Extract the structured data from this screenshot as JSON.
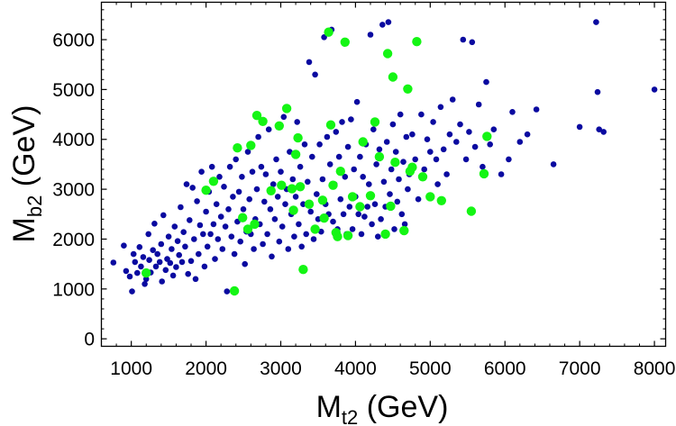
{
  "chart_data": {
    "type": "scatter",
    "title": "",
    "xlabel": {
      "base": "M",
      "sub": "t2",
      "unit": " (GeV)"
    },
    "ylabel": {
      "base": "M",
      "sub": "b2",
      "unit": " (GeV)"
    },
    "xlim": [
      600,
      8150
    ],
    "ylim": [
      -150,
      6750
    ],
    "xticks": [
      1000,
      2000,
      3000,
      4000,
      5000,
      6000,
      7000,
      8000
    ],
    "yticks": [
      0,
      1000,
      2000,
      3000,
      4000,
      5000,
      6000
    ],
    "xtick_labels": [
      "1000",
      "2000",
      "3000",
      "4000",
      "5000",
      "6000",
      "7000",
      "8000"
    ],
    "ytick_labels": [
      "0",
      "1000",
      "2000",
      "3000",
      "4000",
      "5000",
      "6000"
    ],
    "grid": false,
    "colors": {
      "series_blue": "#0a0aa0",
      "series_green": "#14f514",
      "frame": "#000000"
    },
    "series": [
      {
        "name": "blue",
        "color": "#0a0aa0",
        "radius": 3.3,
        "points": [
          [
            760,
            1530
          ],
          [
            900,
            1870
          ],
          [
            930,
            1360
          ],
          [
            980,
            1250
          ],
          [
            1010,
            950
          ],
          [
            1030,
            1700
          ],
          [
            1050,
            1540
          ],
          [
            1080,
            1320
          ],
          [
            1110,
            1840
          ],
          [
            1130,
            1450
          ],
          [
            1160,
            1640
          ],
          [
            1180,
            1100
          ],
          [
            1200,
            1200
          ],
          [
            1230,
            2100
          ],
          [
            1240,
            1580
          ],
          [
            1260,
            1330
          ],
          [
            1290,
            1780
          ],
          [
            1310,
            2310
          ],
          [
            1330,
            1450
          ],
          [
            1350,
            1700
          ],
          [
            1380,
            1540
          ],
          [
            1400,
            1900
          ],
          [
            1410,
            1150
          ],
          [
            1430,
            2480
          ],
          [
            1460,
            1380
          ],
          [
            1480,
            1600
          ],
          [
            1500,
            2050
          ],
          [
            1520,
            1520
          ],
          [
            1540,
            1800
          ],
          [
            1560,
            1270
          ],
          [
            1580,
            2250
          ],
          [
            1600,
            1440
          ],
          [
            1620,
            1960
          ],
          [
            1640,
            1680
          ],
          [
            1660,
            2640
          ],
          [
            1680,
            1540
          ],
          [
            1700,
            2140
          ],
          [
            1720,
            1850
          ],
          [
            1740,
            3100
          ],
          [
            1760,
            1300
          ],
          [
            1780,
            2380
          ],
          [
            1800,
            1560
          ],
          [
            1820,
            3030
          ],
          [
            1840,
            2000
          ],
          [
            1860,
            1200
          ],
          [
            1880,
            2760
          ],
          [
            1900,
            1700
          ],
          [
            1920,
            2280
          ],
          [
            1940,
            3350
          ],
          [
            1960,
            2100
          ],
          [
            1980,
            1450
          ],
          [
            2000,
            2550
          ],
          [
            2020,
            1850
          ],
          [
            2040,
            2950
          ],
          [
            2060,
            2100
          ],
          [
            2080,
            3450
          ],
          [
            2100,
            2300
          ],
          [
            2120,
            1600
          ],
          [
            2140,
            2700
          ],
          [
            2160,
            2000
          ],
          [
            2180,
            3250
          ],
          [
            2200,
            2450
          ],
          [
            2220,
            1800
          ],
          [
            2240,
            3050
          ],
          [
            2260,
            2250
          ],
          [
            2280,
            950
          ],
          [
            2300,
            2600
          ],
          [
            2320,
            3450
          ],
          [
            2340,
            2050
          ],
          [
            2360,
            2850
          ],
          [
            2380,
            1700
          ],
          [
            2400,
            3600
          ],
          [
            2420,
            2350
          ],
          [
            2440,
            2950
          ],
          [
            2460,
            1950
          ],
          [
            2480,
            3250
          ],
          [
            2500,
            2600
          ],
          [
            2520,
            1500
          ],
          [
            2540,
            2150
          ],
          [
            2560,
            3750
          ],
          [
            2580,
            2800
          ],
          [
            2600,
            2100
          ],
          [
            2620,
            3350
          ],
          [
            2640,
            1800
          ],
          [
            2660,
            2400
          ],
          [
            2680,
            3000
          ],
          [
            2700,
            4050
          ],
          [
            2720,
            2300
          ],
          [
            2740,
            3450
          ],
          [
            2760,
            1900
          ],
          [
            2780,
            2750
          ],
          [
            2800,
            3300
          ],
          [
            2820,
            2100
          ],
          [
            2840,
            4200
          ],
          [
            2860,
            2600
          ],
          [
            2880,
            1650
          ],
          [
            2900,
            3100
          ],
          [
            2920,
            2400
          ],
          [
            2940,
            3600
          ],
          [
            2960,
            2850
          ],
          [
            2980,
            1950
          ],
          [
            3000,
            3350
          ],
          [
            3020,
            2250
          ],
          [
            3040,
            4450
          ],
          [
            3060,
            2700
          ],
          [
            3080,
            3000
          ],
          [
            3100,
            1800
          ],
          [
            3120,
            3750
          ],
          [
            3140,
            2500
          ],
          [
            3160,
            3200
          ],
          [
            3180,
            2050
          ],
          [
            3200,
            2850
          ],
          [
            3220,
            4350
          ],
          [
            3240,
            2300
          ],
          [
            3260,
            3450
          ],
          [
            3280,
            1850
          ],
          [
            3300,
            2700
          ],
          [
            3320,
            3900
          ],
          [
            3340,
            2100
          ],
          [
            3360,
            3150
          ],
          [
            3380,
            5550
          ],
          [
            3400,
            2550
          ],
          [
            3420,
            3650
          ],
          [
            3440,
            2000
          ],
          [
            3460,
            5300
          ],
          [
            3480,
            2900
          ],
          [
            3500,
            2400
          ],
          [
            3520,
            3900
          ],
          [
            3540,
            2150
          ],
          [
            3560,
            3200
          ],
          [
            3580,
            6050
          ],
          [
            3600,
            2700
          ],
          [
            3620,
            4050
          ],
          [
            3640,
            2500
          ],
          [
            3660,
            3500
          ],
          [
            3680,
            6200
          ],
          [
            3700,
            2350
          ],
          [
            3720,
            3100
          ],
          [
            3740,
            4150
          ],
          [
            3760,
            2200
          ],
          [
            3780,
            3650
          ],
          [
            3800,
            2800
          ],
          [
            3820,
            4350
          ],
          [
            3840,
            2500
          ],
          [
            3860,
            3250
          ],
          [
            3880,
            2100
          ],
          [
            3900,
            3850
          ],
          [
            3920,
            2650
          ],
          [
            3940,
            4400
          ],
          [
            3960,
            2200
          ],
          [
            3980,
            3400
          ],
          [
            4000,
            2850
          ],
          [
            4020,
            4750
          ],
          [
            4040,
            2500
          ],
          [
            4060,
            3650
          ],
          [
            4080,
            2100
          ],
          [
            4100,
            3250
          ],
          [
            4120,
            2450
          ],
          [
            4140,
            3900
          ],
          [
            4160,
            2650
          ],
          [
            4180,
            3100
          ],
          [
            4200,
            6100
          ],
          [
            4220,
            2300
          ],
          [
            4240,
            4200
          ],
          [
            4260,
            2700
          ],
          [
            4280,
            3500
          ],
          [
            4300,
            2050
          ],
          [
            4320,
            3800
          ],
          [
            4340,
            2400
          ],
          [
            4360,
            6300
          ],
          [
            4380,
            3150
          ],
          [
            4400,
            2650
          ],
          [
            4420,
            3950
          ],
          [
            4440,
            6350
          ],
          [
            4460,
            2900
          ],
          [
            4480,
            3400
          ],
          [
            4500,
            4300
          ],
          [
            4520,
            2200
          ],
          [
            4540,
            3750
          ],
          [
            4560,
            2750
          ],
          [
            4580,
            3200
          ],
          [
            4600,
            4500
          ],
          [
            4620,
            2500
          ],
          [
            4640,
            3550
          ],
          [
            4660,
            2300
          ],
          [
            4680,
            4050
          ],
          [
            4700,
            3000
          ],
          [
            4720,
            3300
          ],
          [
            4760,
            4100
          ],
          [
            4800,
            3600
          ],
          [
            4840,
            2800
          ],
          [
            4880,
            4500
          ],
          [
            4920,
            3400
          ],
          [
            4960,
            4000
          ],
          [
            5000,
            3750
          ],
          [
            5040,
            4350
          ],
          [
            5080,
            3600
          ],
          [
            5100,
            3100
          ],
          [
            5140,
            4650
          ],
          [
            5180,
            3800
          ],
          [
            5220,
            3300
          ],
          [
            5260,
            4100
          ],
          [
            5300,
            4800
          ],
          [
            5350,
            3950
          ],
          [
            5400,
            4300
          ],
          [
            5440,
            6000
          ],
          [
            5480,
            3600
          ],
          [
            5520,
            4150
          ],
          [
            5560,
            5950
          ],
          [
            5600,
            3850
          ],
          [
            5650,
            4700
          ],
          [
            5700,
            3450
          ],
          [
            5750,
            5150
          ],
          [
            5800,
            3900
          ],
          [
            5850,
            4200
          ],
          [
            5950,
            3300
          ],
          [
            6050,
            3600
          ],
          [
            6100,
            4550
          ],
          [
            6200,
            3950
          ],
          [
            6300,
            4100
          ],
          [
            6420,
            4600
          ],
          [
            6650,
            3500
          ],
          [
            7000,
            4250
          ],
          [
            7220,
            6350
          ],
          [
            7240,
            4950
          ],
          [
            7260,
            4200
          ],
          [
            7320,
            4150
          ],
          [
            8000,
            5000
          ]
        ]
      },
      {
        "name": "green",
        "color": "#14f514",
        "radius": 5.2,
        "points": [
          [
            1200,
            1320
          ],
          [
            2000,
            2980
          ],
          [
            2100,
            3160
          ],
          [
            2380,
            960
          ],
          [
            2420,
            3830
          ],
          [
            2490,
            2430
          ],
          [
            2560,
            2200
          ],
          [
            2600,
            3880
          ],
          [
            2650,
            2300
          ],
          [
            2680,
            4480
          ],
          [
            2760,
            4360
          ],
          [
            2870,
            2970
          ],
          [
            2980,
            4270
          ],
          [
            3010,
            3080
          ],
          [
            3080,
            4620
          ],
          [
            3150,
            3010
          ],
          [
            3170,
            2580
          ],
          [
            3200,
            3700
          ],
          [
            3230,
            4030
          ],
          [
            3260,
            3050
          ],
          [
            3300,
            1390
          ],
          [
            3380,
            2700
          ],
          [
            3460,
            2200
          ],
          [
            3560,
            2780
          ],
          [
            3580,
            2420
          ],
          [
            3640,
            6150
          ],
          [
            3670,
            4290
          ],
          [
            3700,
            3080
          ],
          [
            3740,
            2130
          ],
          [
            3760,
            2050
          ],
          [
            3800,
            3360
          ],
          [
            3860,
            5950
          ],
          [
            3900,
            2070
          ],
          [
            3960,
            2850
          ],
          [
            4060,
            2650
          ],
          [
            4100,
            3950
          ],
          [
            4200,
            2870
          ],
          [
            4260,
            4350
          ],
          [
            4320,
            3650
          ],
          [
            4400,
            2100
          ],
          [
            4430,
            5720
          ],
          [
            4470,
            2660
          ],
          [
            4500,
            5250
          ],
          [
            4530,
            3540
          ],
          [
            4650,
            2170
          ],
          [
            4700,
            5010
          ],
          [
            4730,
            3360
          ],
          [
            4760,
            3440
          ],
          [
            4820,
            5960
          ],
          [
            4900,
            3250
          ],
          [
            5000,
            2850
          ],
          [
            5150,
            2770
          ],
          [
            5550,
            2560
          ],
          [
            5720,
            3310
          ],
          [
            5760,
            4060
          ]
        ]
      }
    ]
  }
}
